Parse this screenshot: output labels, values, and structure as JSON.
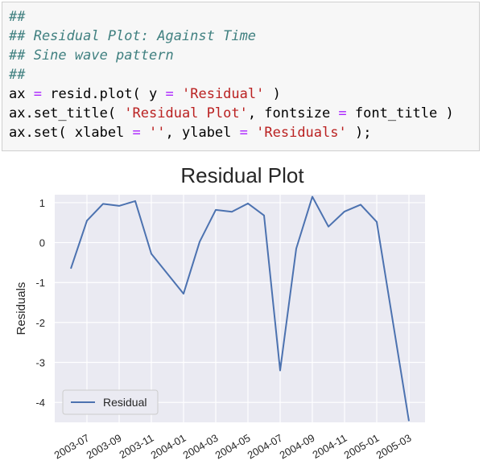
{
  "code_cell": {
    "lines": [
      {
        "parts": [
          {
            "t": "##",
            "c": "comment"
          }
        ]
      },
      {
        "parts": [
          {
            "t": "## Residual Plot: Against Time",
            "c": "comment"
          }
        ]
      },
      {
        "parts": [
          {
            "t": "## Sine wave pattern",
            "c": "comment"
          }
        ]
      },
      {
        "parts": [
          {
            "t": "##",
            "c": "comment"
          }
        ]
      },
      {
        "parts": [
          {
            "t": "ax ",
            "c": "kw"
          },
          {
            "t": "=",
            "c": "op"
          },
          {
            "t": " resid.plot( y ",
            "c": "kw"
          },
          {
            "t": "=",
            "c": "op"
          },
          {
            "t": " ",
            "c": "kw"
          },
          {
            "t": "'Residual'",
            "c": "str"
          },
          {
            "t": " )",
            "c": "kw"
          }
        ]
      },
      {
        "parts": [
          {
            "t": "ax.set_title( ",
            "c": "kw"
          },
          {
            "t": "'Residual Plot'",
            "c": "str"
          },
          {
            "t": ", fontsize ",
            "c": "kw"
          },
          {
            "t": "=",
            "c": "op"
          },
          {
            "t": " font_title )",
            "c": "kw"
          }
        ]
      },
      {
        "parts": [
          {
            "t": "ax.set( xlabel ",
            "c": "kw"
          },
          {
            "t": "=",
            "c": "op"
          },
          {
            "t": " ",
            "c": "kw"
          },
          {
            "t": "''",
            "c": "str"
          },
          {
            "t": ", ylabel ",
            "c": "kw"
          },
          {
            "t": "=",
            "c": "op"
          },
          {
            "t": " ",
            "c": "kw"
          },
          {
            "t": "'Residuals'",
            "c": "str"
          },
          {
            "t": " );",
            "c": "kw"
          }
        ]
      }
    ]
  },
  "colors": {
    "plot_bg": "#eaeaf2",
    "grid": "#ffffff",
    "line": "#4c72b0",
    "legend_border": "#cccccc"
  },
  "chart_data": {
    "type": "line",
    "title": "Residual Plot",
    "xlabel": "",
    "ylabel": "Residuals",
    "grid": true,
    "legend_position": "lower-left",
    "ylim": [
      -4.5,
      1.2
    ],
    "yticks": [
      1,
      0,
      -1,
      -2,
      -3,
      -4
    ],
    "xlim": [
      "2003-05",
      "2005-04"
    ],
    "xticks": [
      "2003-07",
      "2003-09",
      "2003-11",
      "2004-01",
      "2004-03",
      "2004-05",
      "2004-07",
      "2004-09",
      "2004-11",
      "2005-01",
      "2005-03"
    ],
    "x": [
      "2003-06",
      "2003-07",
      "2003-08",
      "2003-09",
      "2003-10",
      "2003-11",
      "2004-01",
      "2004-02",
      "2004-03",
      "2004-04",
      "2004-05",
      "2004-06",
      "2004-07",
      "2004-08",
      "2004-09",
      "2004-10",
      "2004-11",
      "2004-12",
      "2005-01",
      "2005-03"
    ],
    "series": [
      {
        "name": "Residual",
        "values": [
          -0.65,
          0.55,
          0.97,
          0.92,
          1.04,
          -0.28,
          -1.28,
          0.02,
          0.82,
          0.77,
          0.98,
          0.68,
          -3.2,
          -0.15,
          1.15,
          0.4,
          0.78,
          0.95,
          0.52,
          -4.47
        ]
      }
    ]
  }
}
